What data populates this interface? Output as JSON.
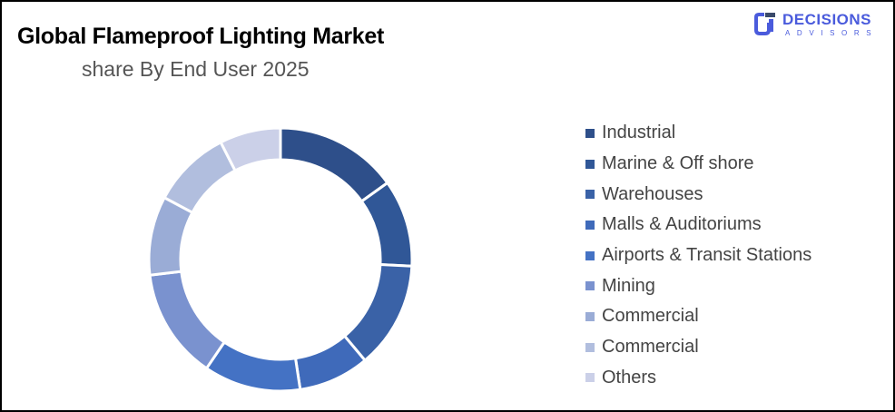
{
  "header": {
    "title": "Global Flameproof Lighting Market",
    "subtitle": "share By End User 2025"
  },
  "logo": {
    "name": "DECISIONS",
    "tagline": "ADVISORS",
    "color": "#4a5bdc"
  },
  "chart_data": {
    "type": "pie",
    "variant": "donut",
    "title": "Global Flameproof Lighting Market",
    "subtitle": "share By End User 2025",
    "legend_position": "right",
    "categories": [
      "Industrial",
      "Marine & Off shore",
      "Warehouses",
      "Malls & Auditoriums",
      "Airports & Transit Stations",
      "Mining",
      "Commercial",
      "Commercial",
      "Others"
    ],
    "values": [
      15.1,
      10.7,
      13.1,
      8.7,
      11.9,
      13.6,
      9.7,
      9.7,
      7.5
    ],
    "colors": [
      "#2E4F8A",
      "#305797",
      "#3A62A7",
      "#3F6ABA",
      "#4472C4",
      "#7A92CF",
      "#9AACD6",
      "#B1BEDE",
      "#CBD0E8"
    ]
  }
}
